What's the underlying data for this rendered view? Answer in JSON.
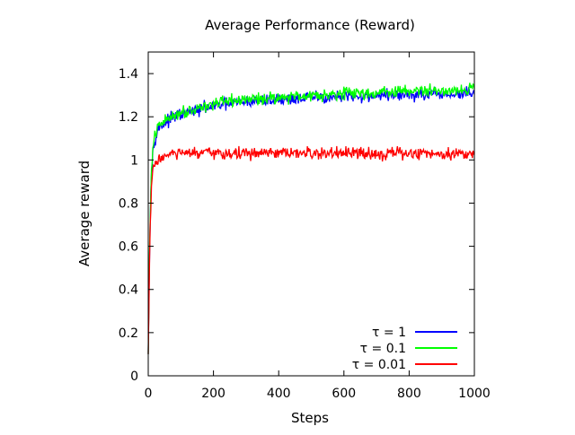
{
  "chart_data": {
    "type": "line",
    "title": "Average Performance (Reward)",
    "xlabel": "Steps",
    "ylabel": "Average reward",
    "xlim": [
      0,
      1000
    ],
    "ylim": [
      0,
      1.5
    ],
    "xticks": [
      0,
      200,
      400,
      600,
      800,
      1000
    ],
    "yticks": [
      0,
      0.2,
      0.4,
      0.6,
      0.8,
      1,
      1.2,
      1.4
    ],
    "grid": false,
    "legend_position": "bottom-right",
    "series": [
      {
        "name": "τ = 1",
        "color": "#0000ff",
        "x": [
          0,
          2,
          5,
          10,
          15,
          20,
          30,
          40,
          50,
          60,
          80,
          100,
          150,
          200,
          250,
          300,
          400,
          500,
          600,
          700,
          800,
          900,
          1000
        ],
        "values": [
          0.1,
          0.35,
          0.7,
          0.95,
          1.05,
          1.1,
          1.14,
          1.16,
          1.17,
          1.18,
          1.2,
          1.21,
          1.23,
          1.25,
          1.26,
          1.27,
          1.28,
          1.29,
          1.29,
          1.3,
          1.3,
          1.3,
          1.31
        ]
      },
      {
        "name": "τ = 0.1",
        "color": "#00ff00",
        "x": [
          0,
          2,
          5,
          10,
          15,
          20,
          30,
          40,
          50,
          60,
          80,
          100,
          150,
          200,
          250,
          300,
          400,
          500,
          600,
          700,
          800,
          900,
          1000
        ],
        "values": [
          0.1,
          0.35,
          0.7,
          0.95,
          1.06,
          1.11,
          1.15,
          1.17,
          1.18,
          1.19,
          1.21,
          1.22,
          1.24,
          1.26,
          1.27,
          1.28,
          1.29,
          1.3,
          1.31,
          1.31,
          1.32,
          1.32,
          1.33
        ]
      },
      {
        "name": "τ = 0.01",
        "color": "#ff0000",
        "x": [
          0,
          2,
          5,
          10,
          15,
          20,
          30,
          40,
          50,
          60,
          80,
          100,
          150,
          200,
          300,
          400,
          500,
          600,
          700,
          800,
          900,
          1000
        ],
        "values": [
          0.1,
          0.3,
          0.65,
          0.88,
          0.95,
          0.98,
          1.0,
          1.01,
          1.02,
          1.02,
          1.03,
          1.03,
          1.03,
          1.03,
          1.03,
          1.03,
          1.03,
          1.03,
          1.03,
          1.03,
          1.03,
          1.03
        ]
      }
    ]
  }
}
